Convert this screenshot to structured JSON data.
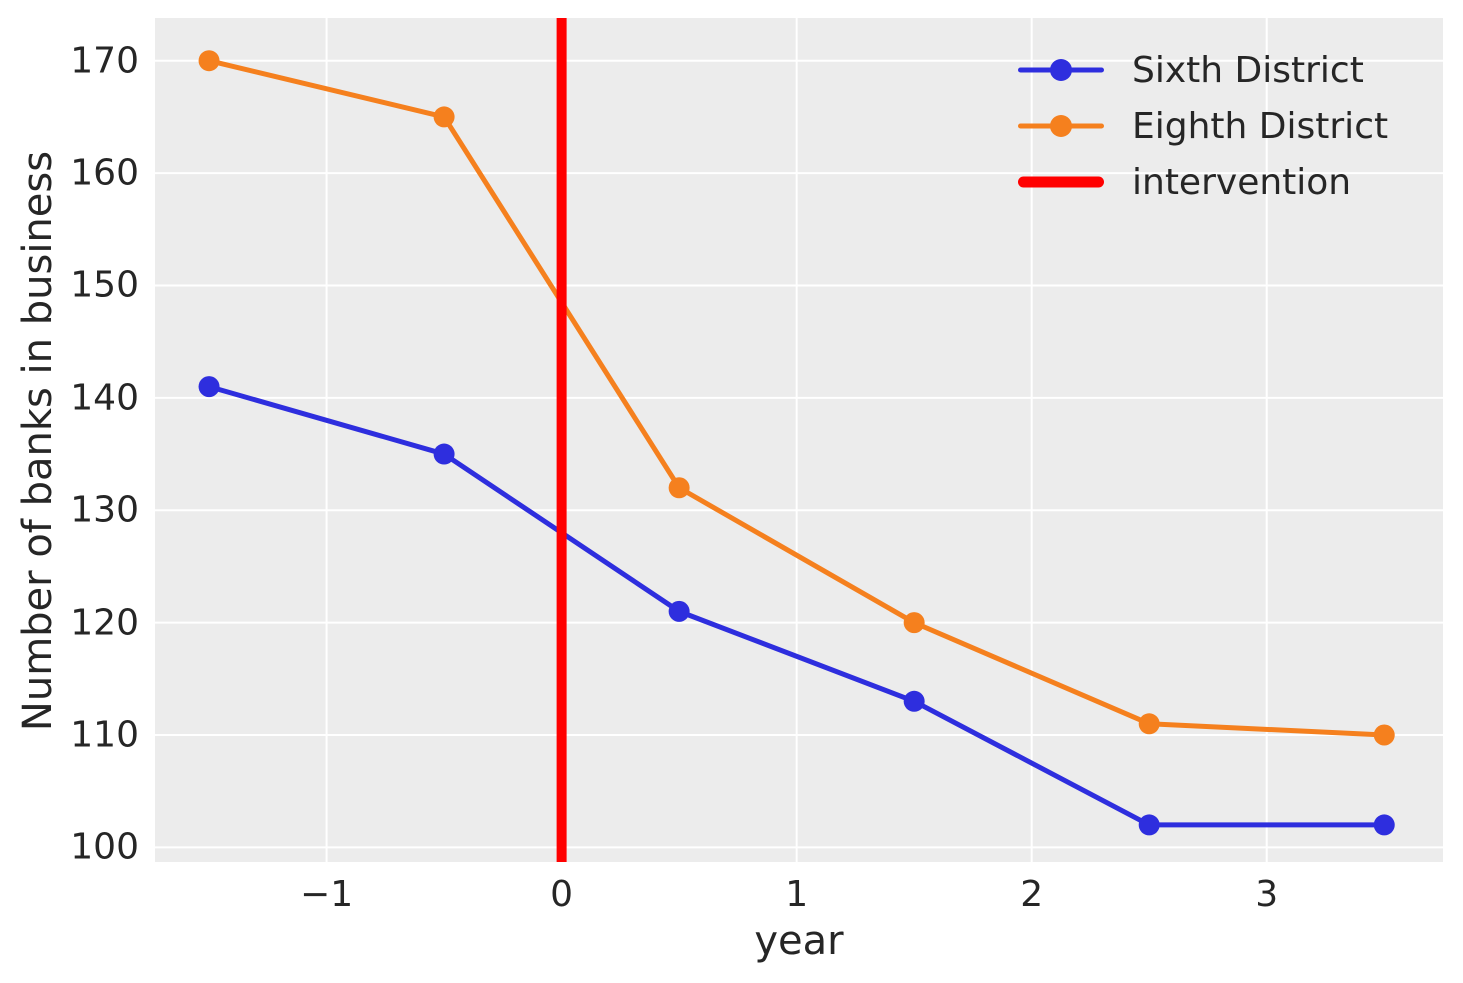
{
  "chart_data": {
    "type": "line",
    "title": "",
    "xlabel": "year",
    "ylabel": "Number of banks in business",
    "x": [
      -1.5,
      -0.5,
      0.5,
      1.5,
      2.5,
      3.5
    ],
    "series": [
      {
        "name": "Sixth District",
        "color": "#2e2ede",
        "values": [
          141,
          135,
          121,
          113,
          102,
          102
        ]
      },
      {
        "name": "Eighth District",
        "color": "#f5801e",
        "values": [
          170,
          165,
          132,
          120,
          111,
          110
        ]
      }
    ],
    "intervention": {
      "label": "intervention",
      "color": "#ff0000",
      "x": 0
    },
    "xticks": [
      -1,
      0,
      1,
      2,
      3
    ],
    "yticks": [
      100,
      110,
      120,
      130,
      140,
      150,
      160,
      170
    ],
    "xlim": [
      -1.73,
      3.75
    ],
    "ylim": [
      98.7,
      173.8
    ],
    "grid": true,
    "legend_position": "upper right",
    "plot_background": "#ececec",
    "grid_color": "#ffffff",
    "text_color": "#262626"
  },
  "legend": {
    "items": [
      {
        "label": "Sixth District",
        "color": "#2e2ede",
        "style": "line-marker"
      },
      {
        "label": "Eighth District",
        "color": "#f5801e",
        "style": "line-marker"
      },
      {
        "label": "intervention",
        "color": "#ff0000",
        "style": "thick-line"
      }
    ]
  }
}
